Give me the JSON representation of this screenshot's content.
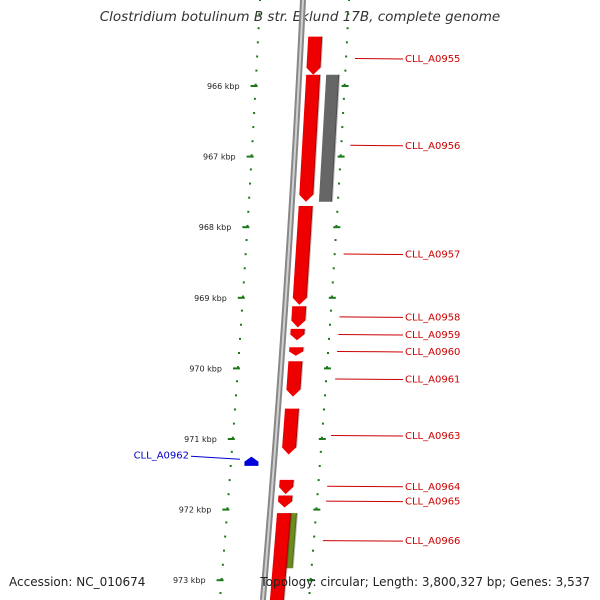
{
  "title": "Clostridium botulinum B str. Eklund 17B, complete genome",
  "footer": {
    "accession": "Accession: NC_010674",
    "info": "Topology: circular; Length: 3,800,327 bp; Genes: 3,537"
  },
  "colors": {
    "forward_gene": "#ee0000",
    "reverse_gene": "#0000dd",
    "rna_feature": "#666666",
    "other_feature": "#6b8c1f",
    "backbone": "#888888",
    "tick": "#1a7a1a",
    "forward_label": "#cc0000",
    "reverse_label": "#0000cc"
  },
  "chart_data": {
    "type": "genome-map",
    "region_kbp": [
      965.3,
      973.3
    ],
    "ticks_kbp": [
      966,
      967,
      968,
      969,
      970,
      971,
      972,
      973
    ],
    "tick_labels": [
      "966 kbp",
      "967 kbp",
      "968 kbp",
      "969 kbp",
      "970 kbp",
      "971 kbp",
      "972 kbp",
      "973 kbp"
    ],
    "genes": [
      {
        "name": "CLL_A0955",
        "strand": "+",
        "start_kbp": 965.3,
        "end_kbp": 965.84
      },
      {
        "name": "CLL_A0956",
        "strand": "+",
        "start_kbp": 965.84,
        "end_kbp": 967.64
      },
      {
        "name": "CLL_A0957",
        "strand": "+",
        "start_kbp": 967.7,
        "end_kbp": 969.1
      },
      {
        "name": "CLL_A0958",
        "strand": "+",
        "start_kbp": 969.12,
        "end_kbp": 969.42
      },
      {
        "name": "CLL_A0959",
        "strand": "+",
        "start_kbp": 969.44,
        "end_kbp": 969.6
      },
      {
        "name": "CLL_A0960",
        "strand": "+",
        "start_kbp": 969.7,
        "end_kbp": 969.82
      },
      {
        "name": "CLL_A0961",
        "strand": "+",
        "start_kbp": 969.9,
        "end_kbp": 970.4
      },
      {
        "name": "CLL_A0963",
        "strand": "+",
        "start_kbp": 970.57,
        "end_kbp": 971.22
      },
      {
        "name": "CLL_A0962",
        "strand": "-",
        "start_kbp": 971.25,
        "end_kbp": 971.38
      },
      {
        "name": "CLL_A0964",
        "strand": "+",
        "start_kbp": 971.58,
        "end_kbp": 971.78
      },
      {
        "name": "CLL_A0965",
        "strand": "+",
        "start_kbp": 971.8,
        "end_kbp": 971.97
      },
      {
        "name": "CLL_A0966",
        "strand": "+",
        "start_kbp": 972.05,
        "end_kbp": 973.3
      }
    ],
    "features": [
      {
        "track": "rna",
        "start_kbp": 965.84,
        "end_kbp": 967.64
      },
      {
        "track": "other",
        "start_kbp": 972.05,
        "end_kbp": 972.83
      }
    ],
    "labels": [
      {
        "name": "CLL_A0955",
        "at_kbp": 965.61,
        "side": "right"
      },
      {
        "name": "CLL_A0956",
        "at_kbp": 966.84,
        "side": "right"
      },
      {
        "name": "CLL_A0957",
        "at_kbp": 968.38,
        "side": "right"
      },
      {
        "name": "CLL_A0958",
        "at_kbp": 969.27,
        "side": "right"
      },
      {
        "name": "CLL_A0959",
        "at_kbp": 969.52,
        "side": "right"
      },
      {
        "name": "CLL_A0960",
        "at_kbp": 969.76,
        "side": "right"
      },
      {
        "name": "CLL_A0961",
        "at_kbp": 970.15,
        "side": "right"
      },
      {
        "name": "CLL_A0963",
        "at_kbp": 970.95,
        "side": "right"
      },
      {
        "name": "CLL_A0962",
        "at_kbp": 971.23,
        "side": "left"
      },
      {
        "name": "CLL_A0964",
        "at_kbp": 971.67,
        "side": "right"
      },
      {
        "name": "CLL_A0965",
        "at_kbp": 971.88,
        "side": "right"
      },
      {
        "name": "CLL_A0966",
        "at_kbp": 972.44,
        "side": "right"
      }
    ]
  }
}
